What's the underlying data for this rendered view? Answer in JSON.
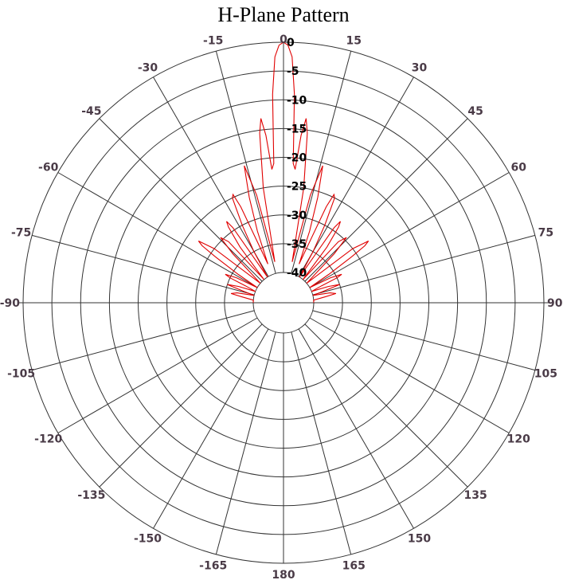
{
  "chart_data": {
    "type": "polar-line",
    "title": "H-Plane Pattern",
    "angle_unit": "degrees",
    "angle_zero": "top",
    "angle_direction": "clockwise",
    "angle_ticks": [
      0,
      15,
      30,
      45,
      60,
      75,
      90,
      105,
      120,
      135,
      150,
      165,
      180,
      -165,
      -150,
      -135,
      -120,
      -105,
      -90,
      -75,
      -60,
      -45,
      -30,
      -15
    ],
    "angle_tick_labels": [
      "0",
      "15",
      "30",
      "45",
      "60",
      "75",
      "90",
      "105",
      "120",
      "135",
      "150",
      "165",
      "180",
      "-165",
      "-150",
      "-135",
      "-120",
      "-105",
      "-90",
      "-75",
      "-60",
      "-45",
      "-30",
      "-15"
    ],
    "radial_range": [
      -40,
      0
    ],
    "radial_ticks": [
      0,
      -5,
      -10,
      -15,
      -20,
      -25,
      -30,
      -35,
      -40
    ],
    "radial_tick_labels": [
      "0",
      "-5",
      "-10",
      "-15",
      "-20",
      "-25",
      "-30",
      "-35",
      "-40"
    ],
    "grid": true,
    "colors": {
      "grid": "#333333",
      "series": "#e00000",
      "tick_text": "#4a3b47"
    },
    "series": [
      {
        "angles": [
          -90,
          -85,
          -82,
          -80,
          -78,
          -76,
          -74,
          -72,
          -70,
          -68,
          -66,
          -65,
          -64,
          -62,
          -60,
          -58,
          -56,
          -55,
          -54,
          -52,
          -50,
          -48,
          -46,
          -44,
          -42,
          -40,
          -38,
          -36,
          -35,
          -34,
          -32,
          -30,
          -28,
          -26,
          -25,
          -24,
          -22,
          -20,
          -18,
          -16,
          -14,
          -12,
          -10,
          -8,
          -7,
          -6,
          -5,
          -4,
          -3,
          -2,
          -1,
          0,
          1,
          2,
          3,
          4,
          5,
          6,
          7,
          8,
          10,
          12,
          14,
          16,
          18,
          20,
          22,
          24,
          25,
          26,
          28,
          30,
          32,
          34,
          35,
          36,
          38,
          40,
          42,
          44,
          46,
          48,
          50,
          52,
          54,
          55,
          56,
          58,
          60,
          62,
          64,
          65,
          66,
          68,
          70,
          72,
          74,
          76,
          78,
          80,
          82,
          85,
          90
        ],
        "values": [
          -40,
          -40,
          -38,
          -36,
          -37,
          -40,
          -38,
          -35,
          -37,
          -40,
          -38,
          -35,
          -34,
          -36,
          -40,
          -36,
          -31,
          -28,
          -27,
          -30,
          -40,
          -38,
          -33,
          -29.5,
          -31,
          -40,
          -33,
          -29,
          -28,
          -29.5,
          -40,
          -35,
          -30,
          -25,
          -24.5,
          -27,
          -38,
          -32,
          -26,
          -20.5,
          -26,
          -38,
          -25,
          -15.5,
          -13,
          -16,
          -22,
          -21,
          -9,
          -2.5,
          -0.5,
          0,
          -0.5,
          -2.5,
          -9,
          -21,
          -22,
          -16,
          -13,
          -15.5,
          -25,
          -38,
          -26,
          -20.5,
          -26,
          -32,
          -38,
          -27,
          -24.5,
          -25,
          -30,
          -35,
          -40,
          -29.5,
          -28,
          -29,
          -33,
          -40,
          -31,
          -29.5,
          -33,
          -38,
          -40,
          -30,
          -27,
          -28,
          -31,
          -36,
          -40,
          -36,
          -34,
          -35,
          -38,
          -40,
          -37,
          -35,
          -38,
          -40,
          -37,
          -36,
          -38,
          -40,
          -40
        ]
      }
    ]
  }
}
